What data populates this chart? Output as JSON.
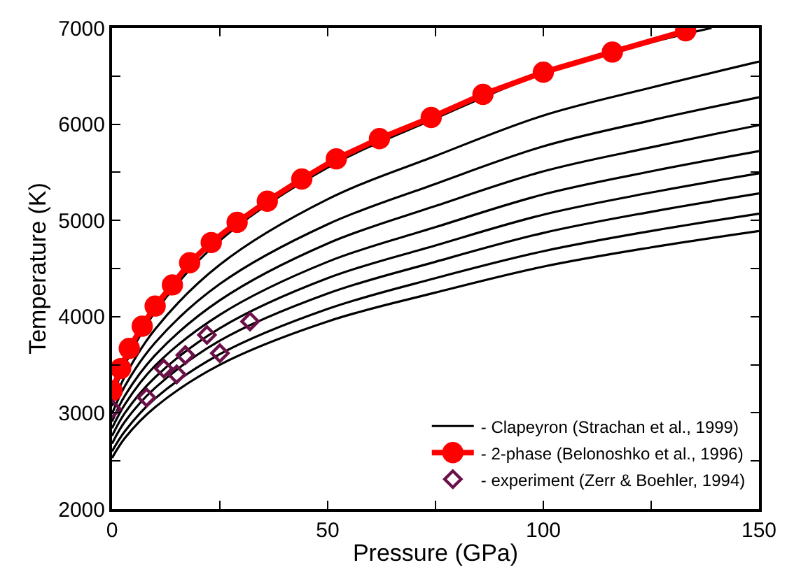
{
  "chart_data": {
    "type": "line",
    "xlabel": "Pressure (GPa)",
    "ylabel": "Temperature (K)",
    "xlim": [
      0,
      150
    ],
    "ylim": [
      2000,
      7000
    ],
    "xticks": [
      0,
      {
        "value": 25,
        "label": null
      },
      50,
      {
        "value": 75,
        "label": null
      },
      100,
      {
        "value": 125,
        "label": null
      },
      150
    ],
    "yticks": [
      2000,
      {
        "value": 2500,
        "label": null
      },
      3000,
      {
        "value": 3500,
        "label": null
      },
      4000,
      {
        "value": 4500,
        "label": null
      },
      5000,
      {
        "value": 5500,
        "label": null
      },
      6000,
      {
        "value": 6500,
        "label": null
      },
      7000
    ],
    "grid": false,
    "legend": "bottom right",
    "series": [
      {
        "name": "- Clapeyron (Strachan et al., 1999)",
        "color": "#000000",
        "marker": "none",
        "x": [
          0,
          3,
          10,
          25,
          50,
          75,
          100,
          125,
          139
        ],
        "values": [
          3150,
          3500,
          4050,
          4790,
          5550,
          6060,
          6530,
          6850,
          7000
        ]
      },
      {
        "color": "#000000",
        "marker": "none",
        "x": [
          0,
          3,
          10,
          25,
          50,
          75,
          100,
          125,
          150
        ],
        "values": [
          3070,
          3380,
          3870,
          4540,
          5220,
          5670,
          6090,
          6380,
          6650
        ]
      },
      {
        "color": "#000000",
        "marker": "none",
        "x": [
          0,
          3,
          10,
          25,
          50,
          75,
          100,
          125,
          150
        ],
        "values": [
          2990,
          3280,
          3730,
          4340,
          4960,
          5380,
          5770,
          6040,
          6280
        ]
      },
      {
        "color": "#000000",
        "marker": "none",
        "x": [
          0,
          3,
          10,
          25,
          50,
          75,
          100,
          125,
          150
        ],
        "values": [
          2910,
          3180,
          3600,
          4170,
          4760,
          5150,
          5510,
          5760,
          5990
        ]
      },
      {
        "color": "#000000",
        "marker": "none",
        "x": [
          0,
          3,
          10,
          25,
          50,
          75,
          100,
          125,
          150
        ],
        "values": [
          2840,
          3090,
          3490,
          4020,
          4570,
          4930,
          5270,
          5510,
          5720
        ]
      },
      {
        "color": "#000000",
        "marker": "none",
        "x": [
          0,
          3,
          10,
          25,
          50,
          75,
          100,
          125,
          150
        ],
        "values": [
          2760,
          3000,
          3370,
          3880,
          4400,
          4740,
          5060,
          5290,
          5490
        ]
      },
      {
        "color": "#000000",
        "marker": "none",
        "x": [
          0,
          3,
          10,
          25,
          50,
          75,
          100,
          125,
          150
        ],
        "values": [
          2680,
          2910,
          3260,
          3750,
          4240,
          4570,
          4870,
          5090,
          5280
        ]
      },
      {
        "color": "#000000",
        "marker": "none",
        "x": [
          0,
          3,
          10,
          25,
          50,
          75,
          100,
          125,
          150
        ],
        "values": [
          2600,
          2810,
          3150,
          3610,
          4080,
          4400,
          4680,
          4890,
          5070
        ]
      },
      {
        "color": "#000000",
        "marker": "none",
        "x": [
          0,
          3,
          10,
          25,
          50,
          75,
          100,
          125,
          150
        ],
        "values": [
          2530,
          2740,
          3060,
          3500,
          3950,
          4250,
          4520,
          4720,
          4890
        ]
      },
      {
        "name": "- 2-phase (Belonoshko et al., 1996)",
        "color": "#ff0000",
        "marker": "circle",
        "x": [
          0,
          2,
          4,
          7,
          10,
          14,
          18,
          23,
          29,
          36,
          44,
          52,
          62,
          74,
          86,
          100,
          116,
          133
        ],
        "values": [
          3230,
          3460,
          3670,
          3900,
          4110,
          4330,
          4560,
          4770,
          4980,
          5200,
          5430,
          5640,
          5850,
          6070,
          6310,
          6540,
          6750,
          6970
        ]
      },
      {
        "name": "- experiment (Zerr & Boehler, 1994)",
        "type": "scatter",
        "color": "#6b1048",
        "marker": "diamond",
        "x": [
          0,
          8,
          12,
          15,
          17,
          22,
          25,
          32
        ],
        "values": [
          3040,
          3160,
          3460,
          3400,
          3600,
          3810,
          3620,
          3950
        ]
      }
    ]
  }
}
